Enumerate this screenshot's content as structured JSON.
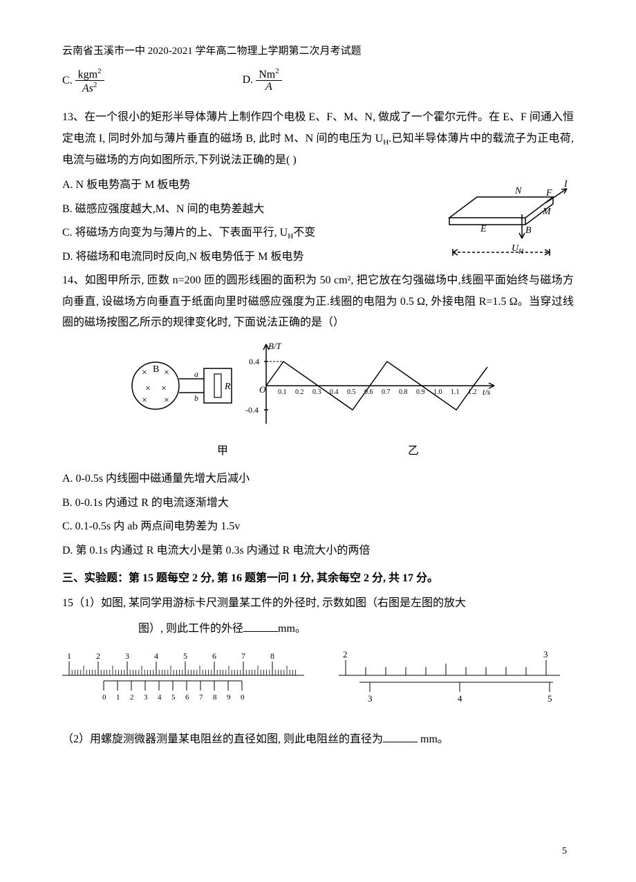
{
  "header": "云南省玉溪市一中 2020-2021 学年高二物理上学期第二次月考试题",
  "optC_prefix": "C. ",
  "optC_num": "kgm",
  "optC_den": "As",
  "optD_prefix": "D. ",
  "optD_num": "Nm",
  "optD_den": "A",
  "q13": {
    "intro": "13、在一个很小的矩形半导体薄片上制作四个电极 E、F、M、N, 做成了一个霍尔元件。在 E、F 间通入恒定电流 I, 同时外加与薄片垂直的磁场 B, 此时 M、N 间的电压为 U",
    "intro2": ".已知半导体薄片中的载流子为正电荷,电流与磁场的方向如图所示,下列说法正确的是( )",
    "A": "A. N 板电势高于 M 板电势",
    "B": "B. 磁感应强度越大,M、N 间的电势差越大",
    "C": "C. 将磁场方向变为与薄片的上、下表面平行, U",
    "C2": "不变",
    "D": "D. 将磁场和电流同时反向,N 板电势低于 M 板电势",
    "fig": {
      "labels": {
        "N": "N",
        "M": "M",
        "E": "E",
        "F": "F",
        "I": "I",
        "B": "B",
        "UH": "U"
      },
      "stroke": "#000000"
    }
  },
  "q14": {
    "intro": "14、如图甲所示, 匝数 n=200 匝的圆形线圈的面积为 50 cm², 把它放在匀强磁场中,线圈平面始终与磁场方向垂直, 设磁场方向垂直于纸面向里时磁感应强度为正.线圈的电阻为 0.5 Ω, 外接电阻 R=1.5 Ω。当穿过线圈的磁场按图乙所示的规律变化时, 下面说法正确的是（）",
    "A": "A. 0-0.5s 内线圈中磁通量先增大后减小",
    "B": "B. 0-0.1s 内通过 R 的电流逐渐增大",
    "C": "C. 0.1-0.5s 内 ab 两点间电势差为 1.5v",
    "D": "D. 第 0.1s 内通过 R 电流大小是第 0.3s 内通过 R 电流大小的两倍",
    "label_jia": "甲",
    "label_yi": "乙",
    "graph": {
      "ylabel": "B/T",
      "xlabel": "t/s",
      "ymax": 0.4,
      "ymin": -0.4,
      "xticks": [
        "0.1",
        "0.2",
        "0.3",
        "0.4",
        "0.5",
        "0.6",
        "0.7",
        "0.8",
        "0.9",
        "1.0",
        "1.1",
        "1.2"
      ],
      "yticks": [
        "0.4",
        "-0.4"
      ],
      "R_label": "R",
      "a_label": "a",
      "b_label": "b",
      "O_label": "O",
      "line_color": "#000000"
    }
  },
  "section3": "三、实验题：第 15 题每空 2 分, 第 16 题第一问 1 分, 其余每空 2 分, 共 17 分。",
  "q15": {
    "p1a": "15（1）如图, 某同学用游标卡尺测量某工件的外径时, 示数如图（右图是左图的放大",
    "p1b": "图）, 则此工件的外径",
    "p1c": "mm。",
    "p2a": "（2）用螺旋测微器测量某电阻丝的直径如图, 则此电阻丝的直径为",
    "p2b": " mm。",
    "caliper": {
      "main_ticks": [
        "1",
        "2",
        "3",
        "4",
        "5",
        "6",
        "7",
        "8"
      ],
      "vernier_ticks": [
        "0",
        "1",
        "2",
        "3",
        "4",
        "5",
        "6",
        "7",
        "8",
        "9",
        "0"
      ],
      "zoom_main": [
        "2",
        "3"
      ],
      "zoom_vernier": [
        "3",
        "4",
        "5"
      ]
    }
  },
  "page_number": "5",
  "colors": {
    "text": "#000000",
    "bg": "#ffffff",
    "stroke": "#000000"
  }
}
